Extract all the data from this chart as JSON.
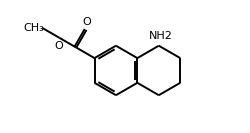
{
  "bg_color": "#ffffff",
  "line_color": "#000000",
  "line_width": 1.4,
  "font_size": 8.0,
  "NH2_label": "NH2",
  "O_label": "O",
  "O2_label": "O",
  "CH3_label": "CH₃"
}
